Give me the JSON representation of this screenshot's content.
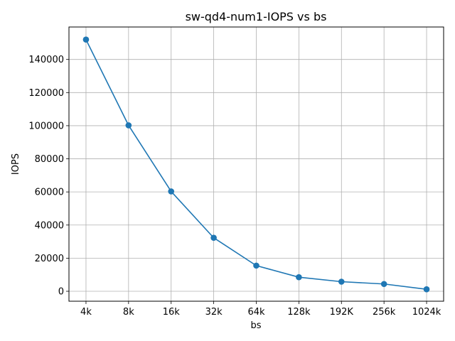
{
  "chart_data": {
    "type": "line",
    "title": "sw-qd4-num1-IOPS vs bs",
    "xlabel": "bs",
    "ylabel": "IOPS",
    "categories": [
      "4k",
      "8k",
      "16k",
      "32k",
      "64k",
      "128k",
      "192K",
      "256k",
      "1024k"
    ],
    "series": [
      {
        "values": [
          152000,
          100200,
          60300,
          32300,
          15500,
          8500,
          5800,
          4400,
          1200
        ],
        "color": "#1f77b4",
        "marker": "circle"
      }
    ],
    "ylim": [
      -6000,
      159600
    ],
    "yticks": [
      0,
      20000,
      40000,
      60000,
      80000,
      100000,
      120000,
      140000
    ],
    "grid": true,
    "legend": "none"
  }
}
